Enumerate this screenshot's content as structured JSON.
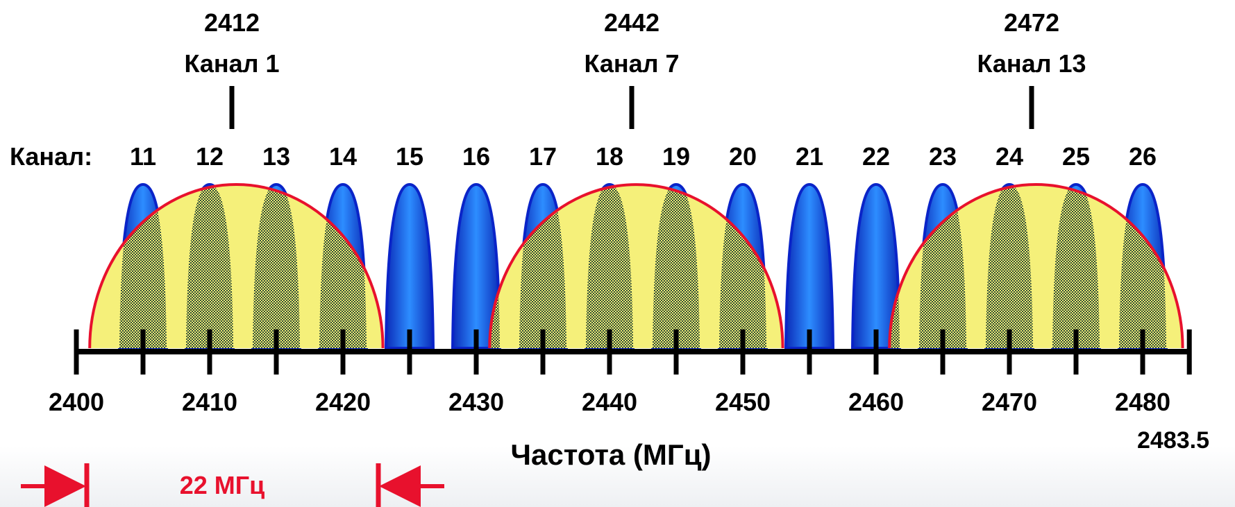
{
  "diagram": {
    "channel_row_label": "Канал:",
    "zigbee_channels": [
      "11",
      "12",
      "13",
      "14",
      "15",
      "16",
      "17",
      "18",
      "19",
      "20",
      "21",
      "22",
      "23",
      "24",
      "25",
      "26"
    ],
    "wifi_channels": [
      {
        "freq": "2412",
        "label": "Канал 1"
      },
      {
        "freq": "2442",
        "label": "Канал 7"
      },
      {
        "freq": "2472",
        "label": "Канал 13"
      }
    ],
    "axis_ticks": [
      "2400",
      "2410",
      "2420",
      "2430",
      "2440",
      "2450",
      "2460",
      "2470",
      "2480"
    ],
    "axis_end_label": "2483.5",
    "axis_title": "Частота (МГц)",
    "bandwidth_label": "22 МГц",
    "colors": {
      "zigbee_fill": "#1a3fd6",
      "zigbee_fill_light": "#2a8cff",
      "wifi_fill": "#f5f07a",
      "wifi_outline": "#e8112d",
      "axis": "#000000",
      "arrow": "#e8112d"
    }
  }
}
